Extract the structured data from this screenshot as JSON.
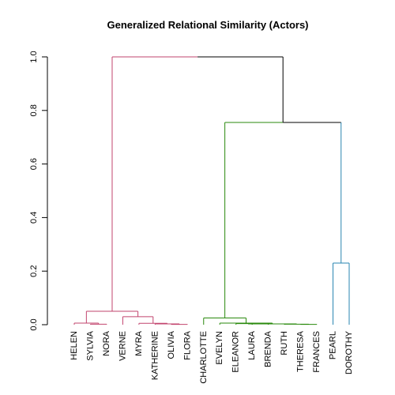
{
  "chart_data": {
    "type": "dendrogram",
    "title": "Generalized Relational Similarity (Actors)",
    "xlabel": "",
    "ylabel": "",
    "ylim": [
      0,
      1.0
    ],
    "yticks": [
      0.0,
      0.2,
      0.4,
      0.6,
      0.8,
      1.0
    ],
    "ytick_labels": [
      "0.0",
      "0.2",
      "0.4",
      "0.6",
      "0.8",
      "1.0"
    ],
    "grid": false,
    "leaves": [
      "HELEN",
      "SYLVIA",
      "NORA",
      "VERNE",
      "MYRA",
      "KATHERINE",
      "OLIVIA",
      "FLORA",
      "CHARLOTTE",
      "EVELYN",
      "ELEANOR",
      "LAURA",
      "BRENDA",
      "RUTH",
      "THERESA",
      "FRANCES",
      "PEARL",
      "DOROTHY"
    ],
    "colors": {
      "pink": "#c2446e",
      "green": "#2a8a0d",
      "blue": "#2a86b0",
      "root": "#000000"
    },
    "merges": [
      {
        "id": "m1",
        "left": "SYLVIA",
        "right": "NORA",
        "height": 0.002,
        "color": "pink"
      },
      {
        "id": "m2",
        "left": "HELEN",
        "right": "m1",
        "height": 0.006,
        "color": "pink"
      },
      {
        "id": "m3",
        "left": "OLIVIA",
        "right": "FLORA",
        "height": 0.001,
        "color": "pink"
      },
      {
        "id": "m4",
        "left": "KATHERINE",
        "right": "m3",
        "height": 0.003,
        "color": "pink"
      },
      {
        "id": "m5",
        "left": "MYRA",
        "right": "m4",
        "height": 0.005,
        "color": "pink"
      },
      {
        "id": "m6",
        "left": "VERNE",
        "right": "m5",
        "height": 0.03,
        "color": "pink"
      },
      {
        "id": "m7",
        "left": "m2",
        "right": "m6",
        "height": 0.05,
        "color": "pink"
      },
      {
        "id": "m8",
        "left": "LAURA",
        "right": "BRENDA",
        "height": 0.004,
        "color": "green"
      },
      {
        "id": "m9",
        "left": "ELEANOR",
        "right": "m8",
        "height": 0.004,
        "color": "green"
      },
      {
        "id": "m10",
        "left": "THERESA",
        "right": "FRANCES",
        "height": 0.001,
        "color": "green"
      },
      {
        "id": "m11",
        "left": "RUTH",
        "right": "m10",
        "height": 0.002,
        "color": "green"
      },
      {
        "id": "m12",
        "left": "m9",
        "right": "m11",
        "height": 0.003,
        "color": "green"
      },
      {
        "id": "m13",
        "left": "EVELYN",
        "right": "m12",
        "height": 0.006,
        "color": "green"
      },
      {
        "id": "m14",
        "left": "CHARLOTTE",
        "right": "m13",
        "height": 0.025,
        "color": "green"
      },
      {
        "id": "m15",
        "left": "PEARL",
        "right": "DOROTHY",
        "height": 0.23,
        "color": "blue"
      },
      {
        "id": "m16",
        "left": "m14",
        "right": "m15",
        "height": 0.755,
        "color": "split"
      },
      {
        "id": "m17",
        "left": "m7",
        "right": "m16",
        "height": 1.0,
        "color": "split"
      }
    ]
  }
}
